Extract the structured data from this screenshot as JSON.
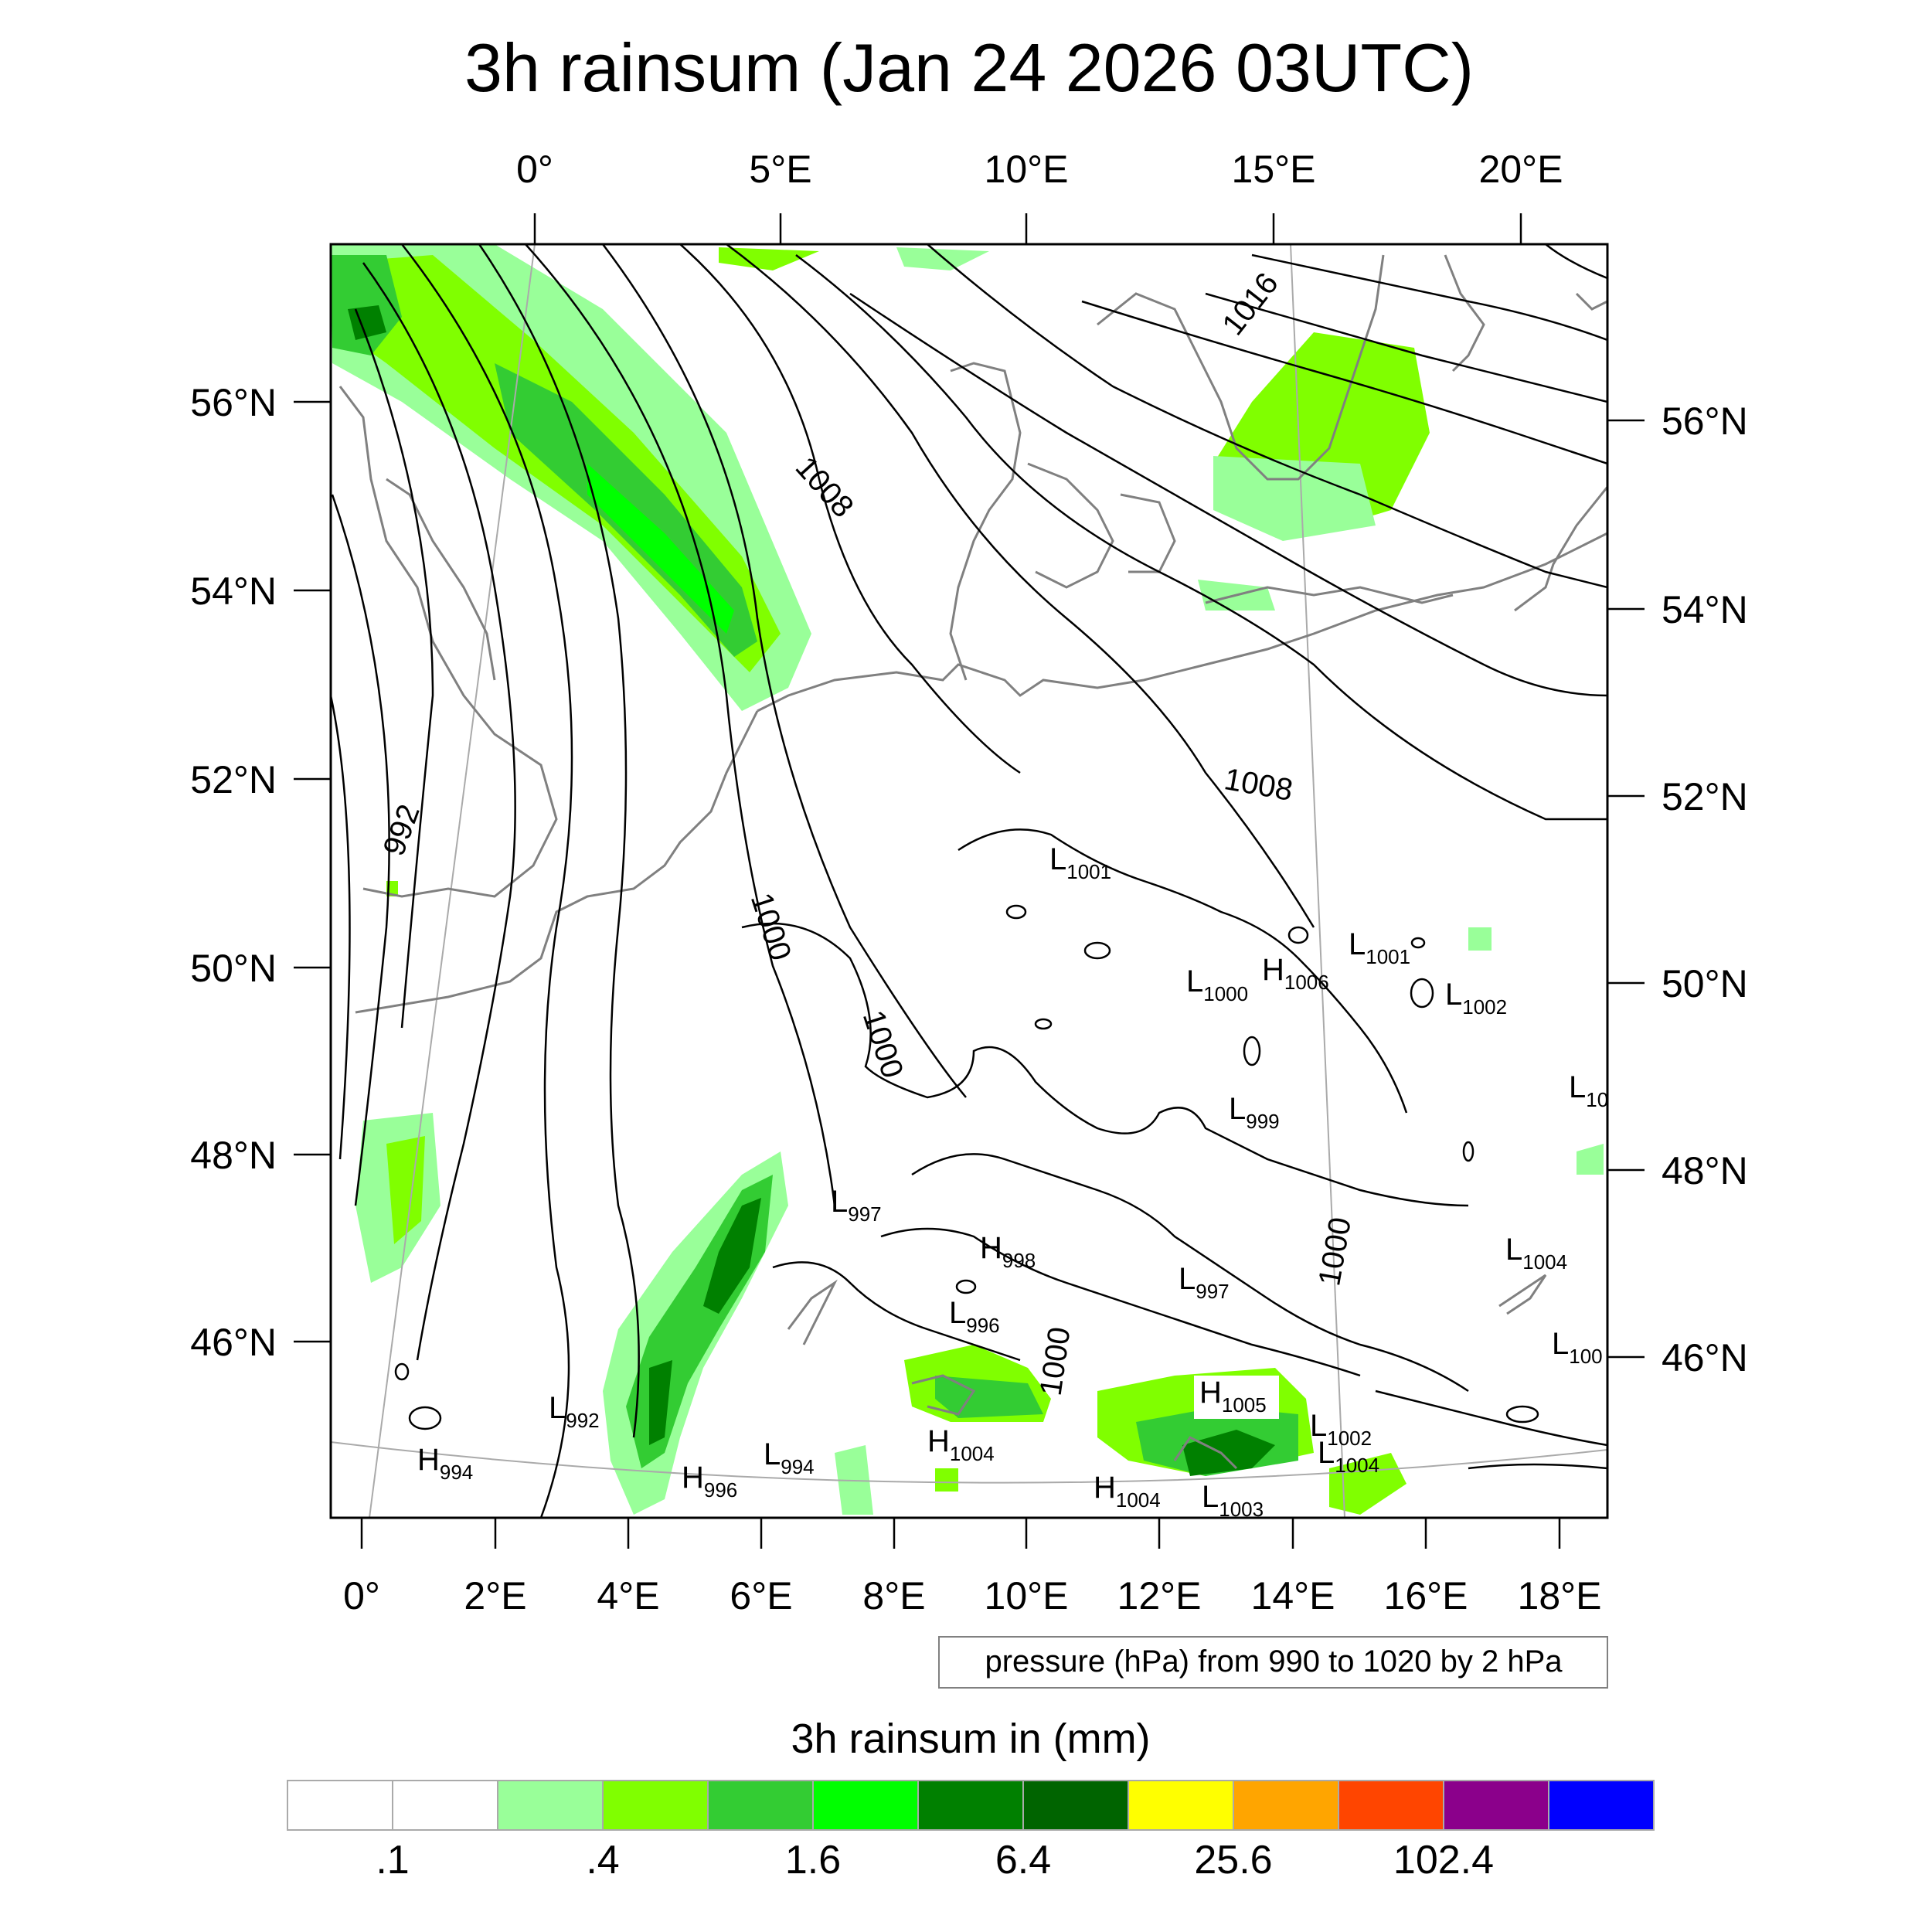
{
  "title": "3h rainsum (Jan 24 2026 03UTC)",
  "top_lon_labels": [
    "0°",
    "5°E",
    "10°E",
    "15°E",
    "20°E"
  ],
  "bottom_lon_labels": [
    "0°",
    "2°E",
    "4°E",
    "6°E",
    "8°E",
    "10°E",
    "12°E",
    "14°E",
    "16°E",
    "18°E"
  ],
  "left_lat_labels": [
    "56°N",
    "54°N",
    "52°N",
    "50°N",
    "48°N",
    "46°N"
  ],
  "right_lat_labels": [
    "56°N",
    "54°N",
    "52°N",
    "50°N",
    "48°N",
    "46°N"
  ],
  "contour_labels": [
    {
      "text": "1016",
      "rot": -52
    },
    {
      "text": "1008",
      "rot": 48
    },
    {
      "text": "1008",
      "rot": 10
    },
    {
      "text": "992",
      "rot": -70
    },
    {
      "text": "1000",
      "rot": 72
    },
    {
      "text": "1000",
      "rot": 72
    },
    {
      "text": "1000",
      "rot": -82
    },
    {
      "text": "1000",
      "rot": -80
    }
  ],
  "pressure_centers": [
    {
      "type": "L",
      "value": "1001"
    },
    {
      "type": "L",
      "value": "1001"
    },
    {
      "type": "L",
      "value": "1000"
    },
    {
      "type": "H",
      "value": "1006"
    },
    {
      "type": "L",
      "value": "1002"
    },
    {
      "type": "L",
      "value": "999"
    },
    {
      "type": "L",
      "value": "10"
    },
    {
      "type": "L",
      "value": "997"
    },
    {
      "type": "H",
      "value": "998"
    },
    {
      "type": "L",
      "value": "997"
    },
    {
      "type": "L",
      "value": "1004"
    },
    {
      "type": "L",
      "value": "996"
    },
    {
      "type": "L",
      "value": "100"
    },
    {
      "type": "H",
      "value": "1005"
    },
    {
      "type": "L",
      "value": "992"
    },
    {
      "type": "L",
      "value": "1002"
    },
    {
      "type": "L",
      "value": "1004"
    },
    {
      "type": "H",
      "value": "1004"
    },
    {
      "type": "L",
      "value": "994"
    },
    {
      "type": "H",
      "value": "994"
    },
    {
      "type": "H",
      "value": "996"
    },
    {
      "type": "H",
      "value": "1004"
    },
    {
      "type": "L",
      "value": "1003"
    }
  ],
  "pressure_note": "pressure (hPa) from 990 to 1020 by 2 hPa",
  "colorbar": {
    "title": "3h rainsum in (mm)",
    "colors": [
      "#ffffff",
      "#ffffff",
      "#99ff99",
      "#80ff00",
      "#33cc33",
      "#00ff00",
      "#008000",
      "#006400",
      "#ffff00",
      "#ffa500",
      "#ff4500",
      "#8b008b",
      "#0000ff"
    ],
    "tick_labels": [
      ".1",
      ".4",
      "1.6",
      "6.4",
      "25.6",
      "102.4"
    ]
  },
  "rain_colors": {
    "light": "#99ff99",
    "lime": "#80ff00",
    "medium": "#33cc33",
    "bright": "#00ff00",
    "dark": "#008000",
    "darkest": "#006400"
  }
}
